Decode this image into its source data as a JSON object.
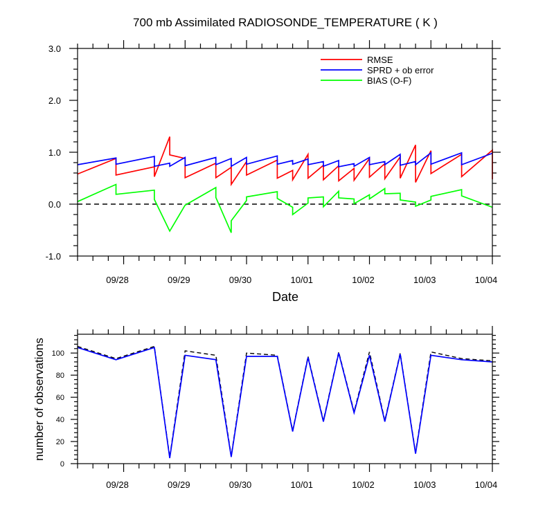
{
  "chart_data": [
    {
      "type": "line",
      "title": "700 mb Assimilated RADIOSONDE_TEMPERATURE ( K )",
      "xlabel": "Date",
      "ylabel": "",
      "xlim": [
        "2022-09-27T06:00",
        "2022-10-04T00:00"
      ],
      "ylim": [
        -1.0,
        3.0
      ],
      "y_ticks": [
        "-1.0",
        "0.0",
        "1.0",
        "2.0",
        "3.0"
      ],
      "x_tick_labels": [
        "09/28",
        "09/29",
        "09/30",
        "10/01",
        "10/02",
        "10/03",
        "10/04"
      ],
      "legend_position": "top-right",
      "zero_line": "dashed",
      "colors": {
        "RMSE": "#ff0000",
        "SPRD": "#0000ff",
        "BIAS": "#00ff00"
      },
      "series": [
        {
          "name": "RMSE",
          "color": "#ff0000",
          "points": [
            [
              "2022-09-27T06:00",
              0.58
            ],
            [
              "2022-09-27T21:00",
              0.88
            ],
            [
              "2022-09-27T21:00",
              0.56
            ],
            [
              "2022-09-28T12:00",
              0.72
            ],
            [
              "2022-09-28T12:00",
              0.53
            ],
            [
              "2022-09-28T18:00",
              1.3
            ],
            [
              "2022-09-28T18:00",
              0.95
            ],
            [
              "2022-09-29T00:00",
              0.88
            ],
            [
              "2022-09-29T00:00",
              0.51
            ],
            [
              "2022-09-29T12:00",
              0.79
            ],
            [
              "2022-09-29T12:00",
              0.51
            ],
            [
              "2022-09-29T18:00",
              0.71
            ],
            [
              "2022-09-29T18:00",
              0.38
            ],
            [
              "2022-09-30T00:00",
              0.82
            ],
            [
              "2022-09-30T00:00",
              0.56
            ],
            [
              "2022-09-30T12:00",
              0.85
            ],
            [
              "2022-09-30T12:00",
              0.5
            ],
            [
              "2022-09-30T18:00",
              0.65
            ],
            [
              "2022-09-30T18:00",
              0.47
            ],
            [
              "2022-10-01T00:00",
              0.96
            ],
            [
              "2022-10-01T00:00",
              0.5
            ],
            [
              "2022-10-01T06:00",
              0.75
            ],
            [
              "2022-10-01T06:00",
              0.47
            ],
            [
              "2022-10-01T12:00",
              0.74
            ],
            [
              "2022-10-01T12:00",
              0.45
            ],
            [
              "2022-10-01T18:00",
              0.69
            ],
            [
              "2022-10-01T18:00",
              0.46
            ],
            [
              "2022-10-02T00:00",
              0.88
            ],
            [
              "2022-10-02T00:00",
              0.52
            ],
            [
              "2022-10-02T06:00",
              0.78
            ],
            [
              "2022-10-02T06:00",
              0.49
            ],
            [
              "2022-10-02T12:00",
              0.91
            ],
            [
              "2022-10-02T12:00",
              0.5
            ],
            [
              "2022-10-02T18:00",
              1.14
            ],
            [
              "2022-10-02T18:00",
              0.42
            ],
            [
              "2022-10-03T00:00",
              1.03
            ],
            [
              "2022-10-03T00:00",
              0.59
            ],
            [
              "2022-10-03T12:00",
              0.96
            ],
            [
              "2022-10-03T12:00",
              0.53
            ],
            [
              "2022-10-04T00:00",
              1.04
            ],
            [
              "2022-10-04T00:00",
              0.48
            ]
          ]
        },
        {
          "name": "SPRD + ob error",
          "color": "#0000ff",
          "points": [
            [
              "2022-09-27T06:00",
              0.76
            ],
            [
              "2022-09-27T21:00",
              0.89
            ],
            [
              "2022-09-27T21:00",
              0.77
            ],
            [
              "2022-09-28T12:00",
              0.92
            ],
            [
              "2022-09-28T12:00",
              0.73
            ],
            [
              "2022-09-28T18:00",
              0.79
            ],
            [
              "2022-09-28T18:00",
              0.73
            ],
            [
              "2022-09-29T00:00",
              0.9
            ],
            [
              "2022-09-29T00:00",
              0.74
            ],
            [
              "2022-09-29T12:00",
              0.9
            ],
            [
              "2022-09-29T12:00",
              0.76
            ],
            [
              "2022-09-29T18:00",
              0.88
            ],
            [
              "2022-09-29T18:00",
              0.73
            ],
            [
              "2022-09-30T00:00",
              0.9
            ],
            [
              "2022-09-30T00:00",
              0.77
            ],
            [
              "2022-09-30T12:00",
              0.93
            ],
            [
              "2022-09-30T12:00",
              0.77
            ],
            [
              "2022-09-30T18:00",
              0.84
            ],
            [
              "2022-09-30T18:00",
              0.77
            ],
            [
              "2022-10-01T00:00",
              0.87
            ],
            [
              "2022-10-01T00:00",
              0.76
            ],
            [
              "2022-10-01T06:00",
              0.82
            ],
            [
              "2022-10-01T06:00",
              0.73
            ],
            [
              "2022-10-01T12:00",
              0.84
            ],
            [
              "2022-10-01T12:00",
              0.72
            ],
            [
              "2022-10-01T18:00",
              0.78
            ],
            [
              "2022-10-01T18:00",
              0.73
            ],
            [
              "2022-10-02T00:00",
              0.9
            ],
            [
              "2022-10-02T00:00",
              0.76
            ],
            [
              "2022-10-02T06:00",
              0.82
            ],
            [
              "2022-10-02T06:00",
              0.76
            ],
            [
              "2022-10-02T12:00",
              0.96
            ],
            [
              "2022-10-02T12:00",
              0.75
            ],
            [
              "2022-10-02T18:00",
              0.82
            ],
            [
              "2022-10-02T18:00",
              0.76
            ],
            [
              "2022-10-03T00:00",
              0.99
            ],
            [
              "2022-10-03T00:00",
              0.77
            ],
            [
              "2022-10-03T12:00",
              0.99
            ],
            [
              "2022-10-03T12:00",
              0.76
            ],
            [
              "2022-10-04T00:00",
              0.98
            ]
          ]
        },
        {
          "name": "BIAS (O-F)",
          "color": "#00ff00",
          "points": [
            [
              "2022-09-27T06:00",
              0.05
            ],
            [
              "2022-09-27T21:00",
              0.38
            ],
            [
              "2022-09-27T21:00",
              0.19
            ],
            [
              "2022-09-28T12:00",
              0.27
            ],
            [
              "2022-09-28T12:00",
              0.09
            ],
            [
              "2022-09-28T18:00",
              -0.52
            ],
            [
              "2022-09-29T00:00",
              -0.02
            ],
            [
              "2022-09-29T12:00",
              0.32
            ],
            [
              "2022-09-29T12:00",
              0.13
            ],
            [
              "2022-09-29T18:00",
              -0.55
            ],
            [
              "2022-09-29T18:00",
              -0.32
            ],
            [
              "2022-09-30T00:00",
              0.07
            ],
            [
              "2022-09-30T00:00",
              0.14
            ],
            [
              "2022-09-30T12:00",
              0.24
            ],
            [
              "2022-09-30T12:00",
              0.11
            ],
            [
              "2022-09-30T18:00",
              -0.06
            ],
            [
              "2022-09-30T18:00",
              -0.2
            ],
            [
              "2022-10-01T00:00",
              0.02
            ],
            [
              "2022-10-01T00:00",
              0.12
            ],
            [
              "2022-10-01T06:00",
              0.14
            ],
            [
              "2022-10-01T06:00",
              -0.05
            ],
            [
              "2022-10-01T12:00",
              0.25
            ],
            [
              "2022-10-01T12:00",
              0.12
            ],
            [
              "2022-10-01T18:00",
              0.1
            ],
            [
              "2022-10-01T18:00",
              0.01
            ],
            [
              "2022-10-02T00:00",
              0.18
            ],
            [
              "2022-10-02T00:00",
              0.1
            ],
            [
              "2022-10-02T06:00",
              0.3
            ],
            [
              "2022-10-02T06:00",
              0.2
            ],
            [
              "2022-10-02T12:00",
              0.21
            ],
            [
              "2022-10-02T12:00",
              0.08
            ],
            [
              "2022-10-02T18:00",
              0.04
            ],
            [
              "2022-10-02T18:00",
              -0.04
            ],
            [
              "2022-10-03T00:00",
              0.08
            ],
            [
              "2022-10-03T00:00",
              0.15
            ],
            [
              "2022-10-03T12:00",
              0.28
            ],
            [
              "2022-10-03T12:00",
              0.16
            ],
            [
              "2022-10-04T00:00",
              -0.06
            ]
          ]
        }
      ]
    },
    {
      "type": "line",
      "title": "",
      "xlabel": "",
      "ylabel": "number of observations",
      "xlim": [
        "2022-09-27T06:00",
        "2022-10-04T00:00"
      ],
      "ylim": [
        0,
        117
      ],
      "y_ticks": [
        "0",
        "20",
        "40",
        "60",
        "80",
        "100"
      ],
      "x_tick_labels": [
        "09/28",
        "09/29",
        "09/30",
        "10/01",
        "10/02",
        "10/03",
        "10/04"
      ],
      "series": [
        {
          "style": "dashed",
          "color": "#000000",
          "x": [
            "2022-09-27T06:00",
            "2022-09-27T21:00",
            "2022-09-28T12:00",
            "2022-09-28T18:00",
            "2022-09-29T00:00",
            "2022-09-29T12:00",
            "2022-09-29T18:00",
            "2022-09-30T00:00",
            "2022-09-30T12:00",
            "2022-09-30T18:00",
            "2022-10-01T00:00",
            "2022-10-01T06:00",
            "2022-10-01T12:00",
            "2022-10-01T18:00",
            "2022-10-02T00:00",
            "2022-10-02T06:00",
            "2022-10-02T12:00",
            "2022-10-02T18:00",
            "2022-10-03T00:00",
            "2022-10-03T12:00",
            "2022-10-04T00:00"
          ],
          "values": [
            106,
            95,
            106,
            6,
            102,
            98,
            7,
            100,
            98,
            30,
            97,
            39,
            101,
            47,
            101,
            39,
            100,
            10,
            101,
            95,
            93
          ]
        },
        {
          "style": "solid",
          "color": "#0000ff",
          "x": [
            "2022-09-27T06:00",
            "2022-09-27T21:00",
            "2022-09-28T12:00",
            "2022-09-28T18:00",
            "2022-09-29T00:00",
            "2022-09-29T12:00",
            "2022-09-29T18:00",
            "2022-09-30T00:00",
            "2022-09-30T12:00",
            "2022-09-30T18:00",
            "2022-10-01T00:00",
            "2022-10-01T06:00",
            "2022-10-01T12:00",
            "2022-10-01T18:00",
            "2022-10-02T00:00",
            "2022-10-02T06:00",
            "2022-10-02T12:00",
            "2022-10-02T18:00",
            "2022-10-03T00:00",
            "2022-10-03T12:00",
            "2022-10-04T00:00"
          ],
          "values": [
            105,
            94,
            105,
            5,
            98,
            94,
            6,
            97,
            97,
            29,
            96,
            38,
            100,
            46,
            98,
            38,
            99,
            9,
            98,
            94,
            92
          ]
        }
      ]
    }
  ]
}
